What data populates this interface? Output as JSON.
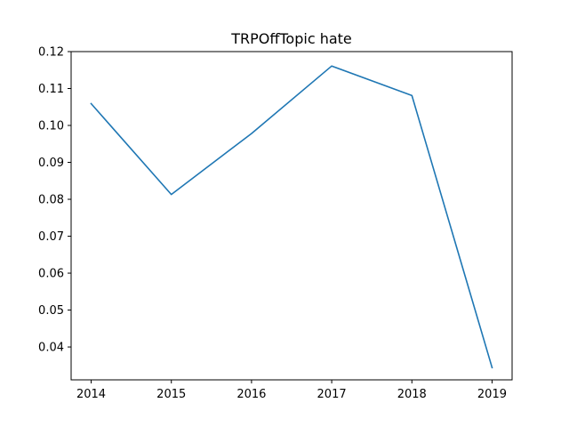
{
  "chart_data": {
    "type": "line",
    "title": "TRPOffTopic hate",
    "xlabel": "",
    "ylabel": "",
    "x": [
      2014,
      2015,
      2016,
      2017,
      2018,
      2019
    ],
    "series": [
      {
        "values": [
          0.1059,
          0.0813,
          0.0978,
          0.1161,
          0.1081,
          0.0344
        ],
        "color": "#1f77b4"
      }
    ],
    "xlim": [
      2013.75,
      2019.25
    ],
    "ylim": [
      0.0311,
      0.12
    ],
    "x_ticks": [
      "2014",
      "2015",
      "2016",
      "2017",
      "2018",
      "2019"
    ],
    "y_ticks": [
      "0.04",
      "0.05",
      "0.06",
      "0.07",
      "0.08",
      "0.09",
      "0.10",
      "0.11",
      "0.12"
    ],
    "grid": false,
    "legend": false
  }
}
